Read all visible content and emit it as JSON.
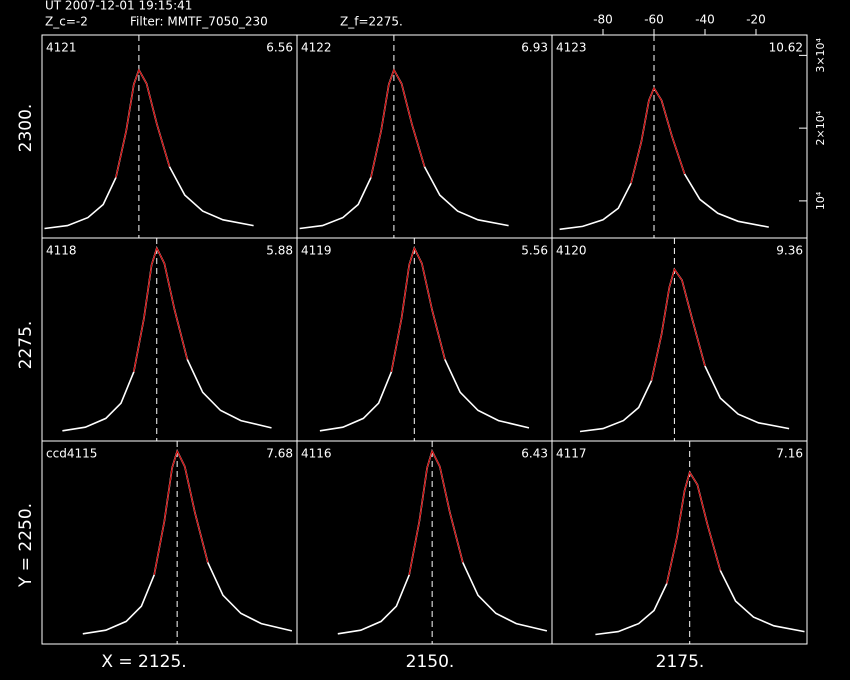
{
  "header": {
    "date": "UT 2007-12-01 19:15:41",
    "zc": "Z_c=-2",
    "filter": "Filter: MMTF_7050_230",
    "zf": "Z_f=2275."
  },
  "row_labels": [
    "2300.",
    "2275.",
    "Y = 2250."
  ],
  "col_labels": [
    "X = 2125.",
    "2150.",
    "2175."
  ],
  "chart_data": [
    {
      "type": "line",
      "title": "4121",
      "annotation": "6.56",
      "xlim": [
        -100,
        0
      ],
      "ylim": [
        4900,
        32800
      ],
      "vline": -62,
      "x": [
        -99,
        -90,
        -82,
        -76,
        -71,
        -67,
        -64,
        -62,
        -59,
        -55,
        -50,
        -44,
        -37,
        -29,
        -17
      ],
      "series": [
        {
          "color": "#ffffff",
          "values": [
            6200,
            6600,
            7700,
            9500,
            13200,
            19600,
            26000,
            28000,
            26100,
            20600,
            14700,
            10800,
            8600,
            7400,
            6600
          ]
        },
        {
          "color": "#cc0000",
          "values": [
            null,
            null,
            null,
            null,
            13200,
            19600,
            26000,
            28000,
            26100,
            20600,
            14700,
            null,
            null,
            null,
            null
          ]
        }
      ]
    },
    {
      "type": "line",
      "title": "4122",
      "annotation": "6.93",
      "xlim": [
        -100,
        0
      ],
      "ylim": [
        4900,
        32800
      ],
      "vline": -62,
      "x": [
        -99,
        -90,
        -82,
        -76,
        -71,
        -67,
        -64,
        -62,
        -59,
        -55,
        -50,
        -44,
        -37,
        -29,
        -17
      ],
      "series": [
        {
          "color": "#ffffff",
          "values": [
            6200,
            6600,
            7700,
            9500,
            13200,
            19600,
            26000,
            28000,
            26100,
            20600,
            14700,
            10800,
            8600,
            7400,
            6600
          ]
        },
        {
          "color": "#cc0000",
          "values": [
            null,
            null,
            null,
            null,
            13200,
            19600,
            26000,
            28000,
            26100,
            20600,
            14700,
            null,
            null,
            null,
            null
          ]
        }
      ]
    },
    {
      "type": "line",
      "title": "4123",
      "annotation": "10.62",
      "xlim": [
        -100,
        0
      ],
      "ylim": [
        4900,
        32800
      ],
      "vline": -60,
      "xticks": [
        -80,
        -60,
        -40,
        -20
      ],
      "yticks": [
        {
          "value": 10000,
          "label": "10⁴"
        },
        {
          "value": 20000,
          "label": "2×10⁴"
        },
        {
          "value": 30000,
          "label": "3×10⁴"
        }
      ],
      "x": [
        -97,
        -88,
        -80,
        -74,
        -69,
        -65,
        -62,
        -60,
        -57,
        -53,
        -48,
        -42,
        -35,
        -27,
        -15
      ],
      "series": [
        {
          "color": "#ffffff",
          "values": [
            6100,
            6500,
            7400,
            9000,
            12400,
            18100,
            23800,
            25500,
            23800,
            18900,
            13700,
            10200,
            8300,
            7200,
            6400
          ]
        },
        {
          "color": "#cc0000",
          "values": [
            null,
            null,
            null,
            null,
            12400,
            18100,
            23800,
            25500,
            23800,
            18900,
            13700,
            null,
            null,
            null,
            null
          ]
        }
      ]
    },
    {
      "type": "line",
      "title": "4118",
      "annotation": "5.88",
      "xlim": [
        -100,
        0
      ],
      "ylim": [
        4900,
        32800
      ],
      "vline": -55,
      "x": [
        -92,
        -83,
        -75,
        -69,
        -64,
        -60,
        -57,
        -55,
        -52,
        -48,
        -43,
        -37,
        -30,
        -22,
        -10
      ],
      "series": [
        {
          "color": "#ffffff",
          "values": [
            6300,
            6800,
            8000,
            10100,
            14400,
            21800,
            29100,
            31400,
            29300,
            22900,
            16100,
            11600,
            9100,
            7700,
            6700
          ]
        },
        {
          "color": "#cc0000",
          "values": [
            null,
            null,
            null,
            null,
            14400,
            21800,
            29100,
            31400,
            29300,
            22900,
            16100,
            null,
            null,
            null,
            null
          ]
        }
      ]
    },
    {
      "type": "line",
      "title": "4119",
      "annotation": "5.56",
      "xlim": [
        -100,
        0
      ],
      "ylim": [
        4900,
        32800
      ],
      "vline": -54,
      "x": [
        -91,
        -82,
        -74,
        -68,
        -63,
        -59,
        -56,
        -54,
        -51,
        -47,
        -42,
        -36,
        -29,
        -21,
        -9
      ],
      "series": [
        {
          "color": "#ffffff",
          "values": [
            6300,
            6800,
            8000,
            10100,
            14400,
            21800,
            29100,
            31400,
            29300,
            22900,
            16100,
            11600,
            9100,
            7700,
            6700
          ]
        },
        {
          "color": "#cc0000",
          "values": [
            null,
            null,
            null,
            null,
            14400,
            21800,
            29100,
            31400,
            29300,
            22900,
            16100,
            null,
            null,
            null,
            null
          ]
        }
      ]
    },
    {
      "type": "line",
      "title": "4120",
      "annotation": "9.36",
      "xlim": [
        -100,
        0
      ],
      "ylim": [
        4900,
        32800
      ],
      "vline": -52,
      "x": [
        -89,
        -80,
        -72,
        -66,
        -61,
        -57,
        -54,
        -52,
        -49,
        -45,
        -40,
        -34,
        -27,
        -19,
        -7
      ],
      "series": [
        {
          "color": "#ffffff",
          "values": [
            6200,
            6600,
            7700,
            9500,
            13200,
            19600,
            26000,
            28500,
            27000,
            21600,
            15200,
            10800,
            8600,
            7400,
            6600
          ]
        },
        {
          "color": "#cc0000",
          "values": [
            null,
            null,
            null,
            null,
            13200,
            19600,
            26000,
            28500,
            27000,
            21600,
            15200,
            null,
            null,
            null,
            null
          ]
        }
      ]
    },
    {
      "type": "line",
      "title": "ccd4115",
      "annotation": "7.68",
      "xlim": [
        -100,
        0
      ],
      "ylim": [
        4900,
        32800
      ],
      "vline": -47,
      "x": [
        -84,
        -75,
        -67,
        -61,
        -56,
        -52,
        -49,
        -47,
        -44,
        -40,
        -35,
        -29,
        -22,
        -14,
        -2
      ],
      "series": [
        {
          "color": "#ffffff",
          "values": [
            6300,
            6800,
            8000,
            10100,
            14400,
            21800,
            29100,
            31400,
            29300,
            22900,
            16100,
            11600,
            9100,
            7700,
            6700
          ]
        },
        {
          "color": "#cc0000",
          "values": [
            null,
            null,
            null,
            null,
            14400,
            21800,
            29100,
            31400,
            29300,
            22900,
            16100,
            null,
            null,
            null,
            null
          ]
        }
      ]
    },
    {
      "type": "line",
      "title": "4116",
      "annotation": "6.43",
      "xlim": [
        -100,
        0
      ],
      "ylim": [
        4900,
        32800
      ],
      "vline": -47,
      "x": [
        -84,
        -75,
        -67,
        -61,
        -56,
        -52,
        -49,
        -47,
        -44,
        -40,
        -35,
        -29,
        -22,
        -14,
        -2
      ],
      "series": [
        {
          "color": "#ffffff",
          "values": [
            6300,
            6800,
            8000,
            10100,
            14400,
            21800,
            29100,
            31400,
            29300,
            22900,
            16100,
            11600,
            9100,
            7700,
            6700
          ]
        },
        {
          "color": "#cc0000",
          "values": [
            null,
            null,
            null,
            null,
            14400,
            21800,
            29100,
            31400,
            29300,
            22900,
            16100,
            null,
            null,
            null,
            null
          ]
        }
      ]
    },
    {
      "type": "line",
      "title": "4117",
      "annotation": "7.16",
      "xlim": [
        -100,
        0
      ],
      "ylim": [
        4900,
        32800
      ],
      "vline": -46,
      "x": [
        -83,
        -74,
        -66,
        -60,
        -55,
        -51,
        -48,
        -46,
        -43,
        -39,
        -34,
        -28,
        -21,
        -13,
        -1
      ],
      "series": [
        {
          "color": "#ffffff",
          "values": [
            6200,
            6600,
            7700,
            9500,
            13200,
            19600,
            26000,
            28500,
            26800,
            21300,
            15000,
            10800,
            8600,
            7400,
            6600
          ]
        },
        {
          "color": "#cc0000",
          "values": [
            null,
            null,
            null,
            null,
            13200,
            19600,
            26000,
            28500,
            26800,
            21300,
            15000,
            null,
            null,
            null,
            null
          ]
        }
      ]
    }
  ]
}
